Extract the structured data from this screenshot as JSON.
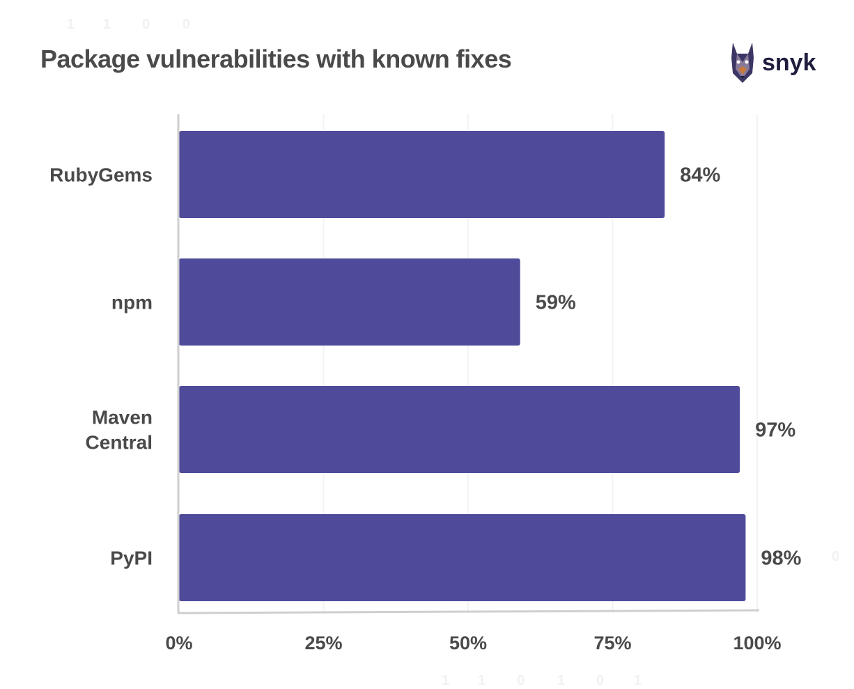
{
  "title": "Package vulnerabilities with known fixes",
  "logo": {
    "text": "snyk",
    "icon": "doberman-dog-icon"
  },
  "background_digits": [
    "1",
    "1",
    "0",
    "0",
    "0",
    "1",
    "1",
    "0",
    "1",
    "0",
    "1"
  ],
  "colors": {
    "bar": "#4f4b9a",
    "text": "#4a4a4a",
    "axis": "#cfcfcf",
    "grid": "#f3f3f3"
  },
  "chart_data": {
    "type": "bar",
    "orientation": "horizontal",
    "title": "Package vulnerabilities with known fixes",
    "categories": [
      {
        "lines": [
          "RubyGems"
        ]
      },
      {
        "lines": [
          "npm"
        ]
      },
      {
        "lines": [
          "Maven",
          "Central"
        ]
      },
      {
        "lines": [
          "PyPI"
        ]
      }
    ],
    "values": [
      84,
      59,
      97,
      98
    ],
    "value_labels": [
      "84%",
      "59%",
      "97%",
      "98%"
    ],
    "xlim": [
      0,
      100
    ],
    "xticks": [
      0,
      25,
      50,
      75,
      100
    ],
    "xtick_labels": [
      "0%",
      "25%",
      "50%",
      "75%",
      "100%"
    ],
    "grid": true
  }
}
